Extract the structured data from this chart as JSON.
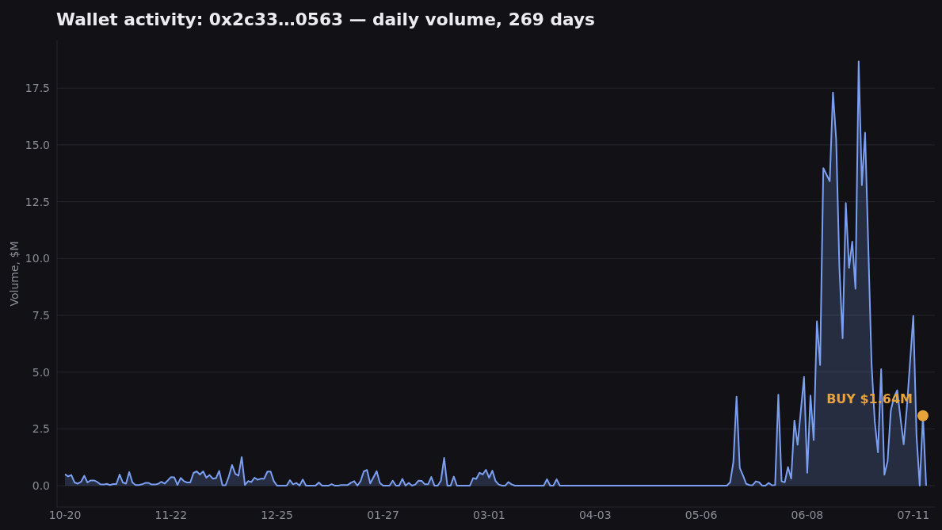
{
  "chart_data": {
    "type": "area",
    "title": "Wallet activity: 0x2c33…0563 — daily volume, 269 days",
    "ylabel": "Volume, $M",
    "ylim": [
      -0.94,
      19.6
    ],
    "yticks": [
      {
        "value": 0,
        "label": "0.0"
      },
      2.5,
      {
        "value": 5,
        "label": "5.0"
      },
      7.5,
      {
        "value": 10,
        "label": "10.0"
      },
      12.5,
      {
        "value": 15,
        "label": "15.0"
      },
      17.5
    ],
    "grid": "y",
    "categories": [
      "10-20",
      null,
      null,
      null,
      null,
      null,
      null,
      null,
      null,
      null,
      null,
      null,
      null,
      null,
      null,
      null,
      null,
      null,
      null,
      null,
      null,
      null,
      null,
      null,
      null,
      null,
      null,
      null,
      null,
      null,
      null,
      null,
      null,
      "11-22",
      null,
      null,
      null,
      null,
      null,
      null,
      null,
      null,
      null,
      null,
      null,
      null,
      null,
      null,
      null,
      null,
      null,
      null,
      null,
      null,
      null,
      null,
      null,
      null,
      null,
      null,
      null,
      null,
      null,
      null,
      null,
      null,
      "12-25",
      null,
      null,
      null,
      null,
      null,
      null,
      null,
      null,
      null,
      null,
      null,
      null,
      null,
      null,
      null,
      null,
      null,
      null,
      null,
      null,
      null,
      null,
      null,
      null,
      null,
      null,
      null,
      null,
      null,
      null,
      null,
      null,
      "01-27",
      null,
      null,
      null,
      null,
      null,
      null,
      null,
      null,
      null,
      null,
      null,
      null,
      null,
      null,
      null,
      null,
      null,
      null,
      null,
      null,
      null,
      null,
      null,
      null,
      null,
      null,
      null,
      null,
      null,
      null,
      null,
      null,
      "03-01",
      null,
      null,
      null,
      null,
      null,
      null,
      null,
      null,
      null,
      null,
      null,
      null,
      null,
      null,
      null,
      null,
      null,
      null,
      null,
      null,
      null,
      null,
      null,
      null,
      null,
      null,
      null,
      null,
      null,
      null,
      null,
      null,
      "04-03",
      null,
      null,
      null,
      null,
      null,
      null,
      null,
      null,
      null,
      null,
      null,
      null,
      null,
      null,
      null,
      null,
      null,
      null,
      null,
      null,
      null,
      null,
      null,
      null,
      null,
      null,
      null,
      null,
      null,
      null,
      null,
      null,
      "05-06",
      null,
      null,
      null,
      null,
      null,
      null,
      null,
      null,
      null,
      null,
      null,
      null,
      null,
      null,
      null,
      null,
      null,
      null,
      null,
      null,
      null,
      null,
      null,
      null,
      null,
      null,
      null,
      null,
      null,
      null,
      null,
      null,
      "06-08",
      null,
      null,
      null,
      null,
      null,
      null,
      null,
      null,
      null,
      null,
      null,
      null,
      null,
      null,
      null,
      null,
      null,
      null,
      null,
      null,
      null,
      null,
      null,
      null,
      null,
      null,
      null,
      null,
      null,
      null,
      null,
      null,
      "07-11",
      null,
      null,
      null,
      null
    ],
    "series": [
      {
        "color": "#7b9ff2",
        "values": [
          0.5,
          0.41,
          0.47,
          0.14,
          0.09,
          0.17,
          0.44,
          0.14,
          0.23,
          0.23,
          0.17,
          0.06,
          0.05,
          0.08,
          0.03,
          0.07,
          0.07,
          0.49,
          0.14,
          0.09,
          0.6,
          0.14,
          0.03,
          0.03,
          0.06,
          0.12,
          0.12,
          0.05,
          0.05,
          0.08,
          0.17,
          0.09,
          0.23,
          0.38,
          0.37,
          0.03,
          0.34,
          0.2,
          0.14,
          0.14,
          0.56,
          0.63,
          0.49,
          0.63,
          0.35,
          0.47,
          0.31,
          0.33,
          0.65,
          0.02,
          0.02,
          0.41,
          0.91,
          0.52,
          0.44,
          1.26,
          0.03,
          0.2,
          0.16,
          0.35,
          0.26,
          0.31,
          0.31,
          0.62,
          0.62,
          0.2,
          0,
          0,
          0,
          0,
          0.24,
          0.06,
          0.12,
          0,
          0.27,
          0,
          0,
          0,
          0,
          0.14,
          0,
          0,
          0,
          0.07,
          0,
          0,
          0.03,
          0.03,
          0.03,
          0.13,
          0.2,
          0,
          0.2,
          0.63,
          0.69,
          0.1,
          0.37,
          0.64,
          0.12,
          0,
          0,
          0,
          0.22,
          0,
          0,
          0.3,
          0,
          0.12,
          0,
          0.05,
          0.22,
          0.21,
          0.06,
          0.06,
          0.38,
          0,
          0,
          0.22,
          1.22,
          0,
          0,
          0.4,
          0,
          0,
          0,
          0,
          0,
          0.33,
          0.3,
          0.57,
          0.49,
          0.7,
          0.35,
          0.66,
          0.2,
          0.05,
          0,
          0,
          0.16,
          0.06,
          0,
          0,
          0,
          0,
          0,
          0,
          0,
          0,
          0,
          0,
          0.28,
          0,
          0,
          0.28,
          0,
          0,
          0,
          0,
          0,
          0,
          0,
          0,
          0,
          0,
          0,
          0,
          0,
          0,
          0,
          0,
          0,
          0,
          0,
          0,
          0,
          0,
          0,
          0,
          0,
          0,
          0,
          0,
          0,
          0,
          0,
          0,
          0,
          0,
          0,
          0,
          0,
          0,
          0,
          0,
          0,
          0,
          0,
          0,
          0,
          0,
          0,
          0,
          0,
          0,
          0,
          0,
          0,
          0.15,
          1.03,
          3.92,
          0.78,
          0.45,
          0.08,
          0.03,
          0.02,
          0.19,
          0.15,
          0,
          0,
          0.12,
          0.02,
          0.03,
          4.0,
          0.19,
          0.15,
          0.82,
          0.31,
          2.87,
          1.8,
          3.3,
          4.79,
          0.57,
          3.97,
          2.01,
          7.24,
          5.31,
          13.98,
          13.69,
          13.4,
          17.31,
          15.24,
          9.61,
          6.49,
          12.44,
          9.59,
          10.74,
          8.67,
          18.68,
          13.23,
          15.54,
          10.5,
          5.4,
          2.83,
          1.47,
          5.13,
          0.48,
          1.07,
          3.3,
          3.9,
          4.2,
          3.0,
          1.82,
          3.45,
          5.46,
          7.47,
          2.2,
          0,
          3.08,
          0
        ]
      },
      {
        "type": "scatter",
        "color": "#e6a43a",
        "marker": "circle",
        "values": [
          null,
          null,
          null,
          null,
          null,
          null,
          null,
          null,
          null,
          null,
          null,
          null,
          null,
          null,
          null,
          null,
          null,
          null,
          null,
          null,
          null,
          null,
          null,
          null,
          null,
          null,
          null,
          null,
          null,
          null,
          null,
          null,
          null,
          null,
          null,
          null,
          null,
          null,
          null,
          null,
          null,
          null,
          null,
          null,
          null,
          null,
          null,
          null,
          null,
          null,
          null,
          null,
          null,
          null,
          null,
          null,
          null,
          null,
          null,
          null,
          null,
          null,
          null,
          null,
          null,
          null,
          null,
          null,
          null,
          null,
          null,
          null,
          null,
          null,
          null,
          null,
          null,
          null,
          null,
          null,
          null,
          null,
          null,
          null,
          null,
          null,
          null,
          null,
          null,
          null,
          null,
          null,
          null,
          null,
          null,
          null,
          null,
          null,
          null,
          null,
          null,
          null,
          null,
          null,
          null,
          null,
          null,
          null,
          null,
          null,
          null,
          null,
          null,
          null,
          null,
          null,
          null,
          null,
          null,
          null,
          null,
          null,
          null,
          null,
          null,
          null,
          null,
          null,
          null,
          null,
          null,
          null,
          null,
          null,
          null,
          null,
          null,
          null,
          null,
          null,
          null,
          null,
          null,
          null,
          null,
          null,
          null,
          null,
          null,
          null,
          null,
          null,
          null,
          null,
          null,
          null,
          null,
          null,
          null,
          null,
          null,
          null,
          null,
          null,
          null,
          null,
          null,
          null,
          null,
          null,
          null,
          null,
          null,
          null,
          null,
          null,
          null,
          null,
          null,
          null,
          null,
          null,
          null,
          null,
          null,
          null,
          null,
          null,
          null,
          null,
          null,
          null,
          null,
          null,
          null,
          null,
          null,
          null,
          null,
          null,
          null,
          null,
          null,
          null,
          null,
          null,
          null,
          null,
          null,
          null,
          null,
          null,
          null,
          null,
          null,
          null,
          null,
          null,
          null,
          null,
          null,
          null,
          null,
          null,
          null,
          null,
          null,
          null,
          null,
          null,
          null,
          null,
          null,
          null,
          null,
          null,
          null,
          null,
          null,
          null,
          null,
          null,
          null,
          null,
          null,
          null,
          null,
          null,
          null,
          null,
          null,
          null,
          null,
          null,
          null,
          null,
          null,
          null,
          null,
          null,
          null,
          null,
          null,
          null,
          null,
          null,
          null,
          3.08,
          null
        ]
      }
    ],
    "annotations": [
      "BUY $1.64M"
    ]
  }
}
